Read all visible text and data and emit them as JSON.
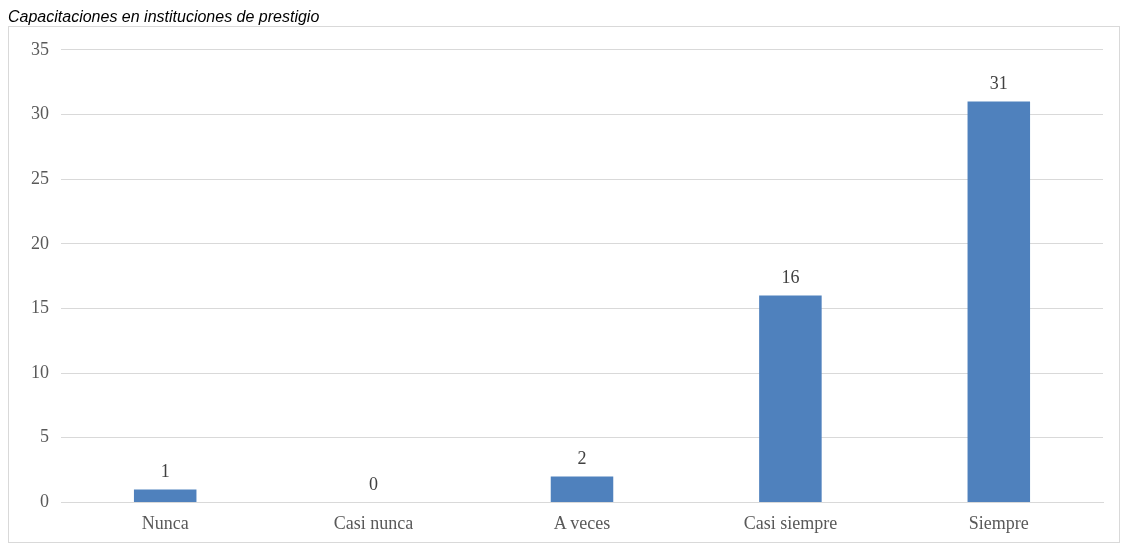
{
  "chart_data": {
    "type": "bar",
    "title": "Capacitaciones en instituciones de prestigio",
    "categories": [
      "Nunca",
      "Casi nunca",
      "A veces",
      "Casi siempre",
      "Siempre"
    ],
    "values": [
      1,
      0,
      2,
      16,
      31
    ],
    "color": "#4f81bd",
    "ylim": [
      0,
      35
    ],
    "yticks": [
      0,
      5,
      10,
      15,
      20,
      25,
      30,
      35
    ],
    "grid": "y",
    "data_labels": true
  }
}
